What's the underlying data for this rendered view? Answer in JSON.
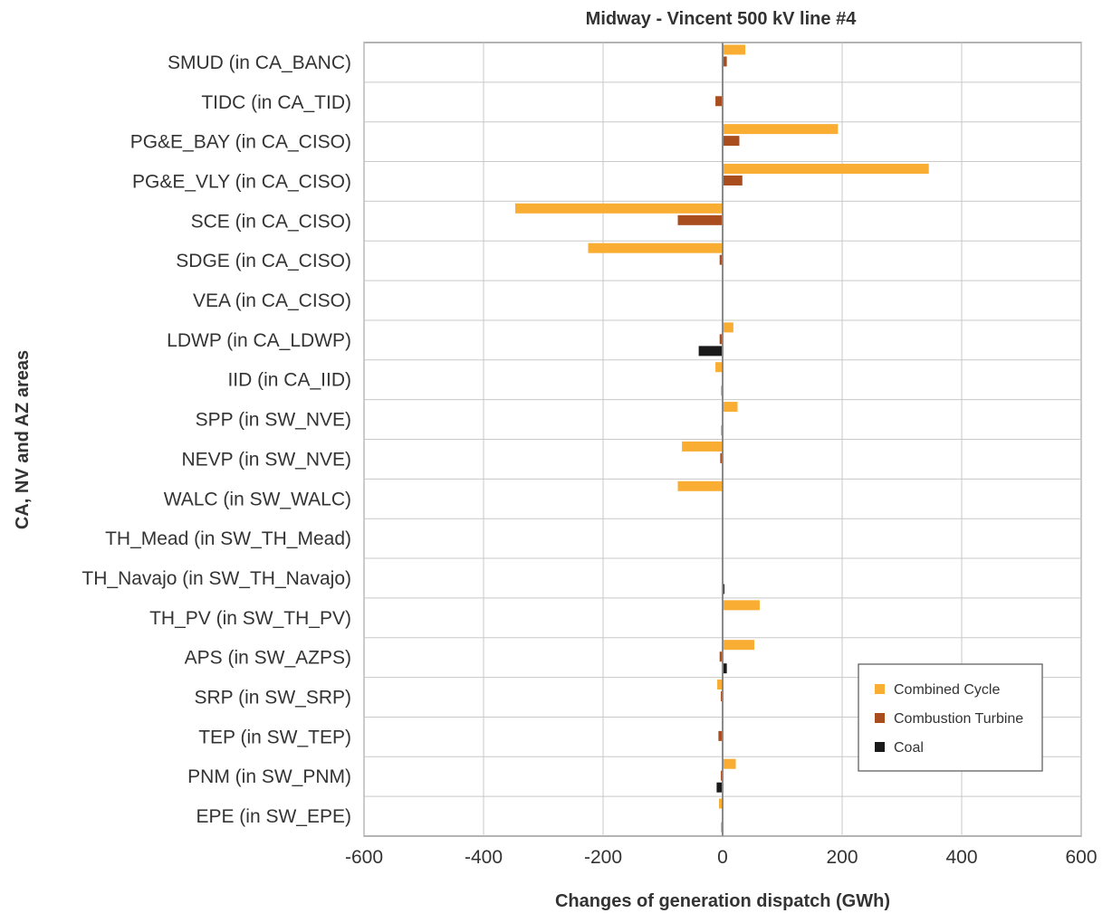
{
  "chart_data": {
    "type": "bar",
    "orientation": "horizontal",
    "title": "Midway - Vincent 500 kV line #4",
    "xlabel": "Changes of generation dispatch (GWh)",
    "ylabel": "CA, NV and AZ areas",
    "xlim": [
      -600,
      600
    ],
    "xticks": [
      "-600",
      "-400",
      "-200",
      "0",
      "200",
      "400",
      "600"
    ],
    "grid": true,
    "legend_position": "bottom-right",
    "categories": [
      "SMUD (in CA_BANC)",
      "TIDC (in CA_TID)",
      "PG&E_BAY (in CA_CISO)",
      "PG&E_VLY (in CA_CISO)",
      "SCE (in CA_CISO)",
      "SDGE (in CA_CISO)",
      "VEA (in CA_CISO)",
      "LDWP (in CA_LDWP)",
      "IID (in CA_IID)",
      "SPP (in SW_NVE)",
      "NEVP (in SW_NVE)",
      "WALC (in SW_WALC)",
      "TH_Mead (in SW_TH_Mead)",
      "TH_Navajo (in SW_TH_Navajo)",
      "TH_PV (in SW_TH_PV)",
      "APS (in SW_AZPS)",
      "SRP (in SW_SRP)",
      "TEP (in SW_TEP)",
      "PNM (in SW_PNM)",
      "EPE (in SW_EPE)"
    ],
    "series": [
      {
        "name": "Combined Cycle",
        "color": "#f9ad32",
        "values": [
          38,
          0,
          193,
          345,
          -347,
          -225,
          0,
          18,
          -12,
          25,
          -68,
          -75,
          0,
          0,
          62,
          53,
          -9,
          0,
          22,
          -6
        ]
      },
      {
        "name": "Combustion Turbine",
        "color": "#a94c1e",
        "values": [
          7,
          -12,
          28,
          33,
          -75,
          -5,
          0,
          -5,
          0,
          0,
          -4,
          0,
          0,
          0,
          0,
          -5,
          -3,
          -7,
          -3,
          0
        ]
      },
      {
        "name": "Coal",
        "color": "#1a1a1a",
        "values": [
          0,
          0,
          0,
          0,
          0,
          0,
          0,
          -40,
          -2,
          -2,
          0,
          0,
          0,
          3,
          0,
          7,
          0,
          0,
          -10,
          -2
        ]
      }
    ]
  }
}
